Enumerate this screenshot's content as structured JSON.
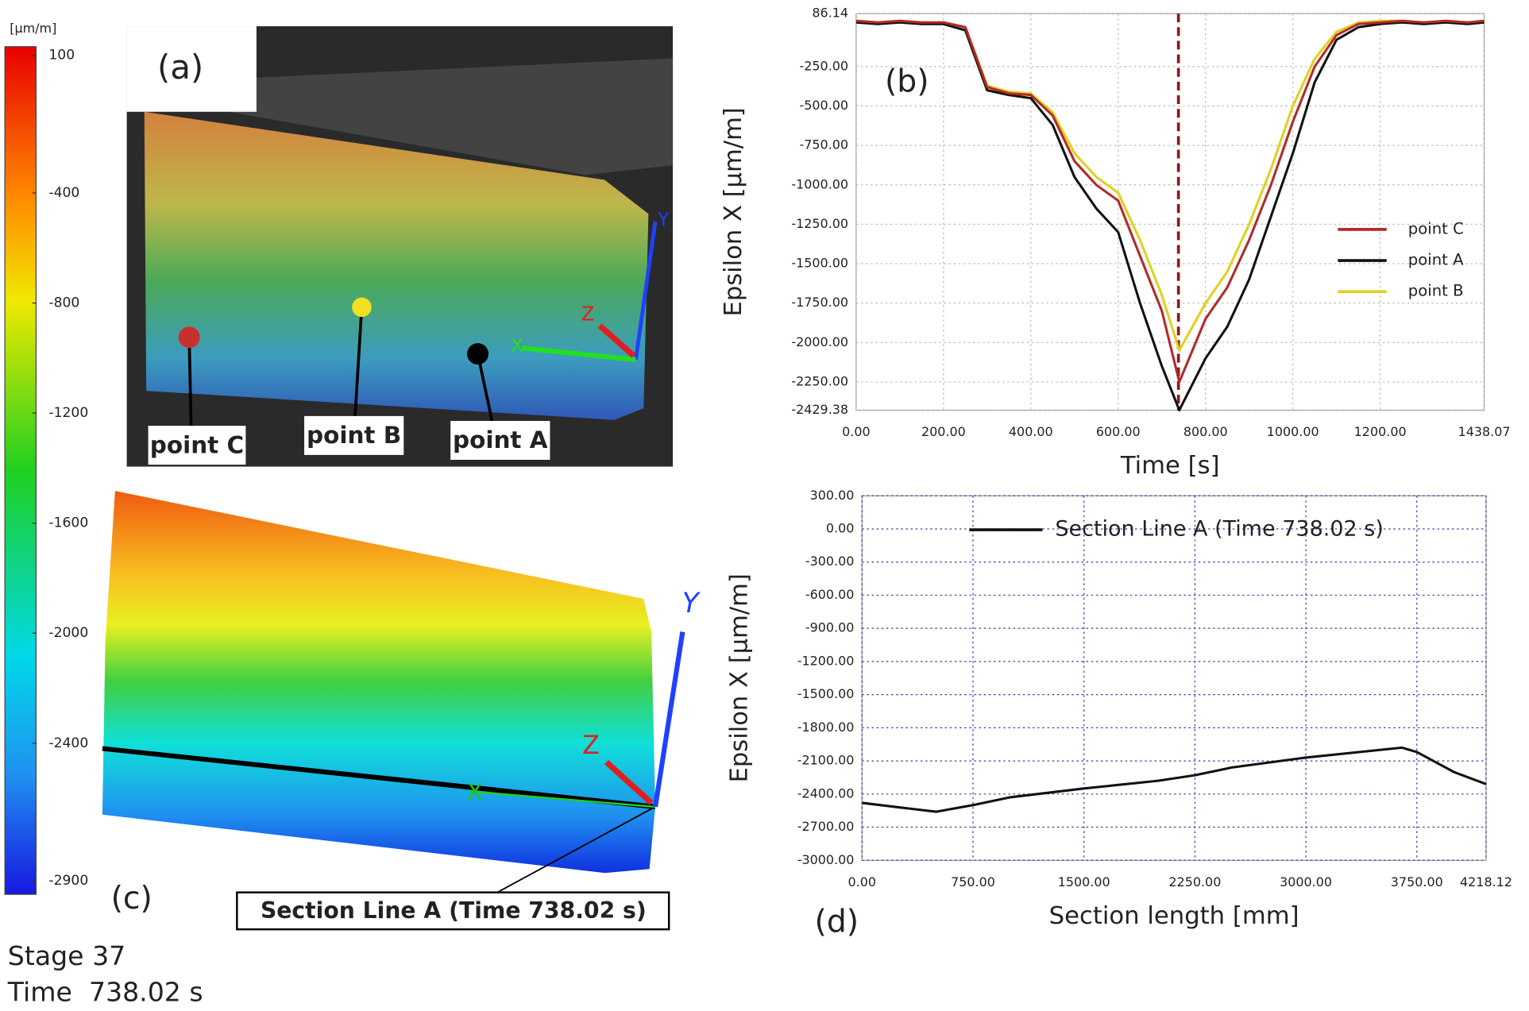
{
  "figure": {
    "colorbar": {
      "label": "[µm/m]",
      "lim": [
        100,
        -2900
      ],
      "ticks": [
        100,
        -400,
        -800,
        -1200,
        -1600,
        -2000,
        -2400,
        -2900
      ]
    },
    "panel_a": {
      "label": "(a)",
      "points": [
        "point C",
        "point B",
        "point A"
      ],
      "axes": [
        "X",
        "Y",
        "Z"
      ]
    },
    "panel_c": {
      "label": "(c)",
      "axes": [
        "X",
        "Y",
        "Z"
      ],
      "callout": "Section Line A (Time 738.02 s)"
    },
    "stage": "Stage 37",
    "time": "Time  738.02 s"
  },
  "chart_data": [
    {
      "type": "line",
      "annotation": "(b)",
      "y_label": "Epsilon X [µm/m]",
      "x_label": "Time [s]",
      "x": [
        0,
        50,
        100,
        150,
        200,
        250,
        300,
        350,
        400,
        450,
        500,
        550,
        600,
        650,
        700,
        740,
        800,
        850,
        900,
        950,
        1000,
        1050,
        1100,
        1150,
        1200,
        1250,
        1300,
        1350,
        1400,
        1438.07
      ],
      "series": [
        {
          "name": "point C",
          "color": "#b22a2a",
          "values": [
            40,
            30,
            40,
            30,
            30,
            0,
            -380,
            -420,
            -430,
            -560,
            -850,
            -1000,
            -1100,
            -1450,
            -1800,
            -2250,
            -1850,
            -1650,
            -1350,
            -1000,
            -600,
            -250,
            -50,
            20,
            30,
            40,
            30,
            40,
            30,
            40
          ]
        },
        {
          "name": "point A",
          "color": "#111111",
          "values": [
            30,
            20,
            30,
            20,
            20,
            -20,
            -400,
            -430,
            -450,
            -620,
            -950,
            -1150,
            -1300,
            -1750,
            -2150,
            -2429,
            -2100,
            -1900,
            -1600,
            -1200,
            -800,
            -350,
            -80,
            0,
            20,
            30,
            20,
            30,
            20,
            30
          ]
        },
        {
          "name": "point B",
          "color": "#e0d020",
          "values": [
            40,
            30,
            40,
            30,
            30,
            0,
            -370,
            -410,
            -420,
            -540,
            -800,
            -950,
            -1050,
            -1350,
            -1700,
            -2050,
            -1750,
            -1550,
            -1250,
            -900,
            -500,
            -200,
            -30,
            30,
            40,
            40,
            30,
            40,
            30,
            40
          ]
        }
      ],
      "xlim": [
        0,
        1438.07
      ],
      "xticks": [
        {
          "value": 0,
          "label": "0.00"
        },
        {
          "value": 200,
          "label": "200.00"
        },
        {
          "value": 400,
          "label": "400.00"
        },
        {
          "value": 600,
          "label": "600.00"
        },
        {
          "value": 800,
          "label": "800.00"
        },
        {
          "value": 1000,
          "label": "1000.00"
        },
        {
          "value": 1200,
          "label": "1200.00"
        },
        1438.07
      ],
      "ylim": [
        -2429.38,
        86.14
      ],
      "yticks": [
        86.14,
        {
          "value": -250,
          "label": "-250.00"
        },
        {
          "value": -500,
          "label": "-500.00"
        },
        {
          "value": -750,
          "label": "-750.00"
        },
        {
          "value": -1000,
          "label": "-1000.00"
        },
        {
          "value": -1250,
          "label": "-1250.00"
        },
        {
          "value": -1500,
          "label": "-1500.00"
        },
        {
          "value": -1750,
          "label": "-1750.00"
        },
        {
          "value": -2000,
          "label": "-2000.00"
        },
        {
          "value": -2250,
          "label": "-2250.00"
        },
        -2429.38
      ],
      "grid": true,
      "grid_color": "#bbbbbb",
      "legend": "right",
      "marker_x": 738.02,
      "marker_color": "#8b1a1a"
    },
    {
      "type": "line",
      "annotation": "(d)",
      "y_label": "Epsilon X [µm/m]",
      "x_label": "Section length [mm]",
      "x": [
        0,
        250,
        500,
        750,
        1000,
        1500,
        2000,
        2250,
        2500,
        3000,
        3500,
        3650,
        3750,
        4000,
        4218.12
      ],
      "series": [
        {
          "name": "Section Line A (Time 738.02 s)",
          "color": "#111111",
          "values": [
            -2480,
            -2520,
            -2560,
            -2500,
            -2430,
            -2350,
            -2280,
            -2230,
            -2160,
            -2070,
            -2000,
            -1980,
            -2020,
            -2200,
            -2310
          ]
        }
      ],
      "xlim": [
        0,
        4218.12
      ],
      "xticks": [
        {
          "value": 0,
          "label": "0.00"
        },
        {
          "value": 750,
          "label": "750.00"
        },
        {
          "value": 1500,
          "label": "1500.00"
        },
        {
          "value": 2250,
          "label": "2250.00"
        },
        {
          "value": 3000,
          "label": "3000.00"
        },
        {
          "value": 3750,
          "label": "3750.00"
        },
        4218.12
      ],
      "ylim": [
        -3000,
        300
      ],
      "yticks": [
        {
          "value": 300,
          "label": "300.00"
        },
        {
          "value": 0,
          "label": "0.00"
        },
        {
          "value": -300,
          "label": "-300.00"
        },
        {
          "value": -600,
          "label": "-600.00"
        },
        {
          "value": -900,
          "label": "-900.00"
        },
        {
          "value": -1200,
          "label": "-1200.00"
        },
        {
          "value": -1500,
          "label": "-1500.00"
        },
        {
          "value": -1800,
          "label": "-1800.00"
        },
        {
          "value": -2100,
          "label": "-2100.00"
        },
        {
          "value": -2400,
          "label": "-2400.00"
        },
        {
          "value": -2700,
          "label": "-2700.00"
        },
        {
          "value": -3000,
          "label": "-3000.00"
        }
      ],
      "grid": true,
      "grid_color": "#3a3aa8",
      "legend": "top"
    }
  ]
}
